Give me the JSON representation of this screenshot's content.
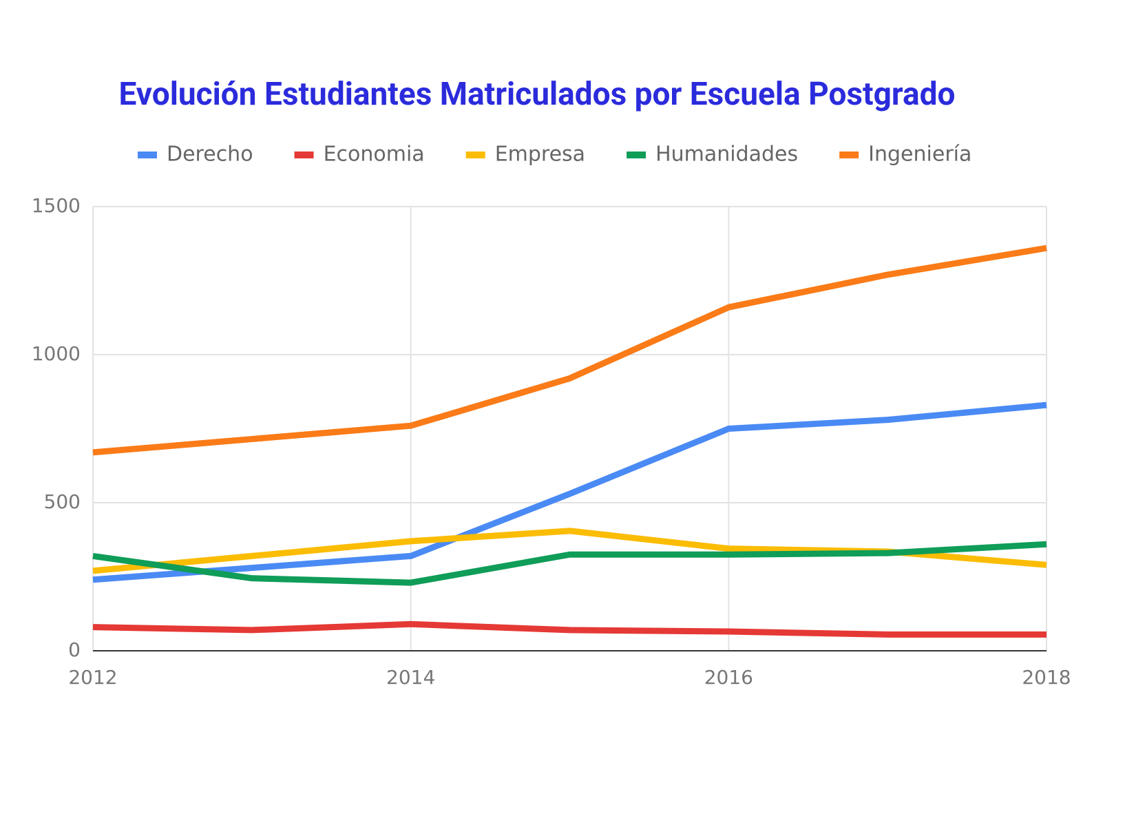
{
  "chart_data": {
    "type": "line",
    "title": "Evolución Estudiantes Matriculados por Escuela Postgrado",
    "x": [
      2012,
      2013,
      2014,
      2015,
      2016,
      2017,
      2018
    ],
    "xlim": [
      2012,
      2018
    ],
    "xticks": [
      2012,
      2014,
      2016,
      2018
    ],
    "ylim": [
      0,
      1500
    ],
    "yticks": [
      0,
      500,
      1000,
      1500
    ],
    "grid": true,
    "legend": "top",
    "series": [
      {
        "name": "Derecho",
        "color": "#4a8af4",
        "values": [
          240,
          280,
          320,
          530,
          750,
          780,
          830
        ]
      },
      {
        "name": "Economia",
        "color": "#e53935",
        "values": [
          80,
          70,
          90,
          70,
          65,
          55,
          55
        ]
      },
      {
        "name": "Empresa",
        "color": "#fbbc04",
        "values": [
          270,
          320,
          370,
          405,
          345,
          335,
          290
        ]
      },
      {
        "name": "Humanidades",
        "color": "#0f9d58",
        "values": [
          320,
          245,
          230,
          325,
          325,
          330,
          360
        ]
      },
      {
        "name": "Ingeniería",
        "color": "#fa7b17",
        "values": [
          670,
          715,
          760,
          920,
          1160,
          1270,
          1360
        ]
      }
    ]
  }
}
